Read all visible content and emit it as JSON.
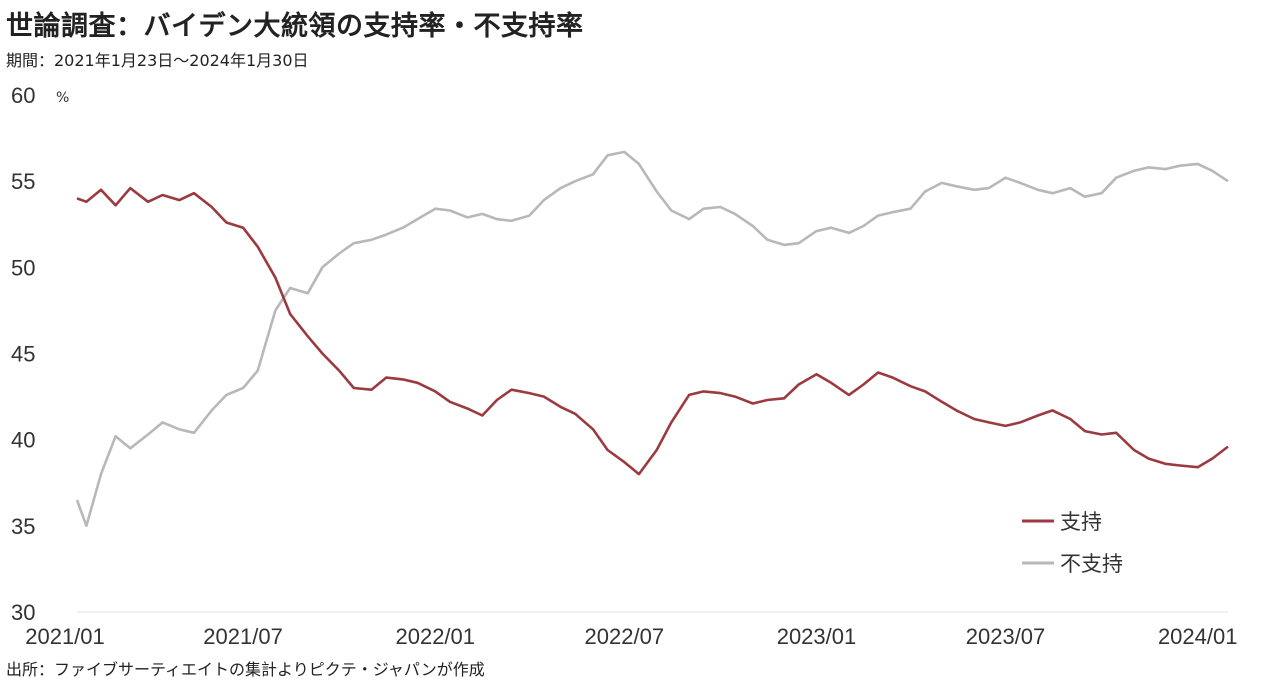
{
  "header": {
    "title": "世論調査：バイデン大統領の支持率・不支持率",
    "period": "期間：2021年1月23日～2024年1月30日"
  },
  "footer": {
    "source": "出所：ファイブサーティエイトの集計よりピクテ・ジャパンが作成"
  },
  "chart_data": {
    "type": "line",
    "title": "世論調査：バイデン大統領の支持率・不支持率",
    "ylabel_unit": "%",
    "ylim": [
      30,
      60
    ],
    "yticks": [
      "30",
      "35",
      "40",
      "45",
      "50",
      "55",
      "60"
    ],
    "xticks": [
      "2021/01",
      "2021/07",
      "2022/01",
      "2022/07",
      "2023/01",
      "2023/07",
      "2024/01"
    ],
    "x": [
      "2021-01-23",
      "2021-02-01",
      "2021-02-15",
      "2021-03-01",
      "2021-03-15",
      "2021-04-01",
      "2021-04-15",
      "2021-05-01",
      "2021-05-15",
      "2021-06-01",
      "2021-06-15",
      "2021-07-01",
      "2021-07-15",
      "2021-08-01",
      "2021-08-15",
      "2021-09-01",
      "2021-09-15",
      "2021-10-01",
      "2021-10-15",
      "2021-11-01",
      "2021-11-15",
      "2021-12-01",
      "2021-12-15",
      "2022-01-01",
      "2022-01-15",
      "2022-02-01",
      "2022-02-15",
      "2022-03-01",
      "2022-03-15",
      "2022-04-01",
      "2022-04-15",
      "2022-05-01",
      "2022-05-15",
      "2022-06-01",
      "2022-06-15",
      "2022-07-01",
      "2022-07-15",
      "2022-08-01",
      "2022-08-15",
      "2022-09-01",
      "2022-09-15",
      "2022-10-01",
      "2022-10-15",
      "2022-11-01",
      "2022-11-15",
      "2022-12-01",
      "2022-12-15",
      "2023-01-01",
      "2023-01-15",
      "2023-02-01",
      "2023-02-15",
      "2023-03-01",
      "2023-03-15",
      "2023-04-01",
      "2023-04-15",
      "2023-05-01",
      "2023-05-15",
      "2023-06-01",
      "2023-06-15",
      "2023-07-01",
      "2023-07-15",
      "2023-08-01",
      "2023-08-15",
      "2023-09-01",
      "2023-09-15",
      "2023-10-01",
      "2023-10-15",
      "2023-11-01",
      "2023-11-15",
      "2023-12-01",
      "2023-12-15",
      "2024-01-01",
      "2024-01-15",
      "2024-01-30"
    ],
    "series": [
      {
        "name": "支持",
        "color": "#9b3a3f",
        "values": [
          54.0,
          53.8,
          54.5,
          53.6,
          54.6,
          53.8,
          54.2,
          53.9,
          54.3,
          53.5,
          52.6,
          52.3,
          51.2,
          49.4,
          47.3,
          46.0,
          45.0,
          44.0,
          43.0,
          42.9,
          43.6,
          43.5,
          43.3,
          42.8,
          42.2,
          41.8,
          41.4,
          42.3,
          42.9,
          42.7,
          42.5,
          41.9,
          41.5,
          40.6,
          39.4,
          38.7,
          38.0,
          39.4,
          41.0,
          42.6,
          42.8,
          42.7,
          42.5,
          42.1,
          42.3,
          42.4,
          43.2,
          43.8,
          43.3,
          42.6,
          43.2,
          43.9,
          43.6,
          43.1,
          42.8,
          42.2,
          41.7,
          41.2,
          41.0,
          40.8,
          41.0,
          41.4,
          41.7,
          41.2,
          40.5,
          40.3,
          40.4,
          39.4,
          38.9,
          38.6,
          38.5,
          38.4,
          38.9,
          39.6
        ]
      },
      {
        "name": "不支持",
        "color": "#b8b8b8",
        "values": [
          36.5,
          35.0,
          38.0,
          40.2,
          39.5,
          40.3,
          41.0,
          40.6,
          40.4,
          41.7,
          42.6,
          43.0,
          44.0,
          47.5,
          48.8,
          48.5,
          50.0,
          50.8,
          51.4,
          51.6,
          51.9,
          52.3,
          52.8,
          53.4,
          53.3,
          52.9,
          53.1,
          52.8,
          52.7,
          53.0,
          53.9,
          54.6,
          55.0,
          55.4,
          56.5,
          56.7,
          56.0,
          54.4,
          53.3,
          52.8,
          53.4,
          53.5,
          53.1,
          52.4,
          51.6,
          51.3,
          51.4,
          52.1,
          52.3,
          52.0,
          52.4,
          53.0,
          53.2,
          53.4,
          54.4,
          54.9,
          54.7,
          54.5,
          54.6,
          55.2,
          54.9,
          54.5,
          54.3,
          54.6,
          54.1,
          54.3,
          55.2,
          55.6,
          55.8,
          55.7,
          55.9,
          56.0,
          55.6,
          55.0
        ]
      }
    ],
    "legend": [
      "支持",
      "不支持"
    ],
    "legend_position": "bottom-right",
    "grid": false
  }
}
